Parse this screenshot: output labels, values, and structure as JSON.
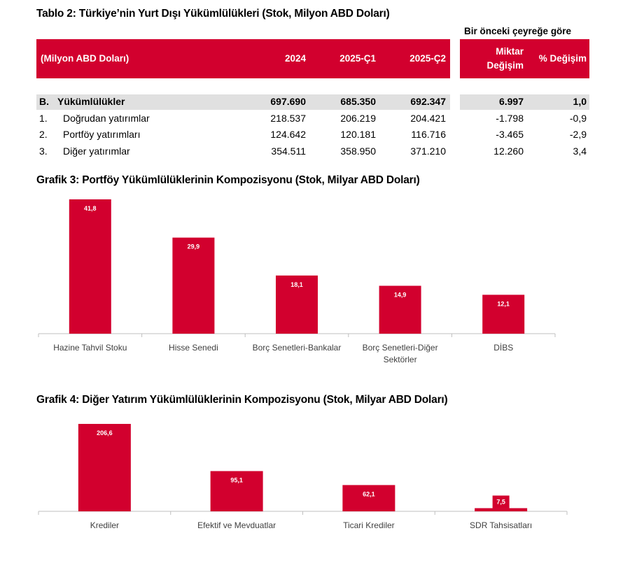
{
  "table": {
    "title": "Tablo 2: Türkiye’nin Yurt Dışı Yükümlülükleri (Stok, Milyon ABD Doları)",
    "group_header": "Bir önceki çeyreğe göre",
    "columns": [
      "(Milyon ABD Doları)",
      "2024",
      "2025-Ç1",
      "2025-Ç2",
      "Miktar Değişim",
      "% Değişim"
    ],
    "miktar_line1": "Miktar",
    "miktar_line2": "Değişim",
    "rows": [
      {
        "num": "B.",
        "label": "Yükümlülükler",
        "values": [
          "697.690",
          "685.350",
          "692.347",
          "6.997",
          "1,0"
        ]
      },
      {
        "num": "1.",
        "label": "Doğrudan yatırımlar",
        "values": [
          "218.537",
          "206.219",
          "204.421",
          "-1.798",
          "-0,9"
        ]
      },
      {
        "num": "2.",
        "label": "Portföy yatırımları",
        "values": [
          "124.642",
          "120.181",
          "116.716",
          "-3.465",
          "-2,9"
        ]
      },
      {
        "num": "3.",
        "label": "Diğer yatırımlar",
        "values": [
          "354.511",
          "358.950",
          "371.210",
          "12.260",
          "3,4"
        ]
      }
    ]
  },
  "colors": {
    "accent": "#d2002e",
    "highlight_row": "#e0e0e0"
  },
  "chart_data": [
    {
      "type": "bar",
      "title": "Grafik 3: Portföy Yükümlülüklerinin Kompozisyonu (Stok, Milyar ABD Doları)",
      "categories": [
        "Hazine Tahvil Stoku",
        "Hisse Senedi",
        "Borç Senetleri-Bankalar",
        "Borç Senetleri-Diğer Sektörler",
        "DİBS"
      ],
      "category_lines": [
        [
          "Hazine Tahvil Stoku"
        ],
        [
          "Hisse Senedi"
        ],
        [
          "Borç Senetleri-Bankalar"
        ],
        [
          "Borç Senetleri-Diğer",
          "Sektörler"
        ],
        [
          "DİBS"
        ]
      ],
      "values": [
        41.8,
        29.9,
        18.1,
        14.9,
        12.1
      ],
      "value_labels": [
        "41,8",
        "29,9",
        "18,1",
        "14,9",
        "12,1"
      ],
      "grid": false,
      "color": "#d2002e"
    },
    {
      "type": "bar",
      "title": "Grafik 4: Diğer Yatırım Yükümlülüklerinin Kompozisyonu (Stok, Milyar ABD Doları)",
      "categories": [
        "Krediler",
        "Efektif ve Mevduatlar",
        "Ticari Krediler",
        "SDR Tahsisatları"
      ],
      "category_lines": [
        [
          "Krediler"
        ],
        [
          "Efektif ve Mevduatlar"
        ],
        [
          "Ticari Krediler"
        ],
        [
          "SDR Tahsisatları"
        ]
      ],
      "values": [
        206.6,
        95.1,
        62.1,
        7.5
      ],
      "value_labels": [
        "206,6",
        "95,1",
        "62,1",
        "7,5"
      ],
      "grid": false,
      "color": "#d2002e"
    }
  ]
}
